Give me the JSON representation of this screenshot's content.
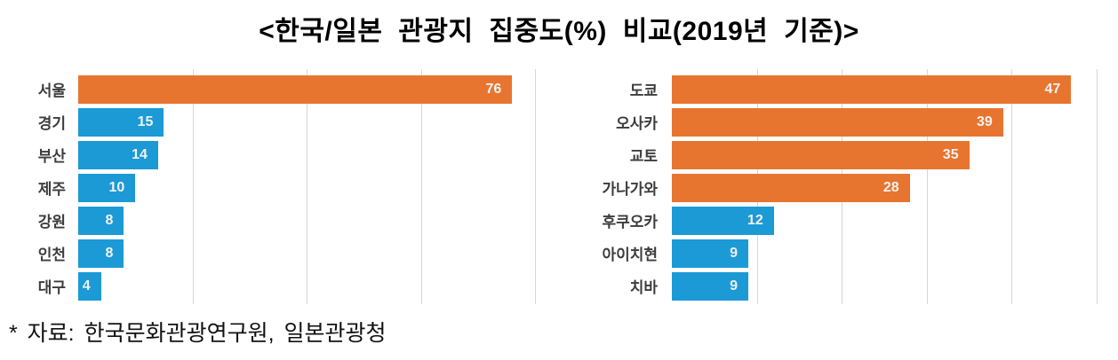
{
  "title": "<한국/일본 관광지 집중도(%) 비교(2019년 기준)>",
  "footnote": "* 자료: 한국문화관광연구원, 일본관광청",
  "colors": {
    "highlight_bar": "#e8752f",
    "normal_bar": "#1b9ad6",
    "gridline": "#d6d6d6",
    "category_label": "#3d3d3d",
    "value_label": "#f2f2f2",
    "title_text": "#000000"
  },
  "chart_data": [
    {
      "type": "bar",
      "orientation": "horizontal",
      "title": "",
      "unit": "%",
      "categories": [
        "서울",
        "경기",
        "부산",
        "제주",
        "강원",
        "인천",
        "대구"
      ],
      "values": [
        76,
        15,
        14,
        10,
        8,
        8,
        4
      ],
      "bar_colors": [
        "#e8752f",
        "#1b9ad6",
        "#1b9ad6",
        "#1b9ad6",
        "#1b9ad6",
        "#1b9ad6",
        "#1b9ad6"
      ],
      "xlim": [
        0,
        80
      ],
      "grid_step": 20,
      "grid": true,
      "legend": false,
      "value_labels": "inside-end"
    },
    {
      "type": "bar",
      "orientation": "horizontal",
      "title": "",
      "unit": "%",
      "categories": [
        "도쿄",
        "오사카",
        "교토",
        "가나가와",
        "후쿠오카",
        "아이치현",
        "치바"
      ],
      "values": [
        47,
        39,
        35,
        28,
        12,
        9,
        9
      ],
      "bar_colors": [
        "#e8752f",
        "#e8752f",
        "#e8752f",
        "#e8752f",
        "#1b9ad6",
        "#1b9ad6",
        "#1b9ad6"
      ],
      "xlim": [
        0,
        50
      ],
      "grid_step": 10,
      "grid": true,
      "legend": false,
      "value_labels": "inside-end"
    }
  ]
}
